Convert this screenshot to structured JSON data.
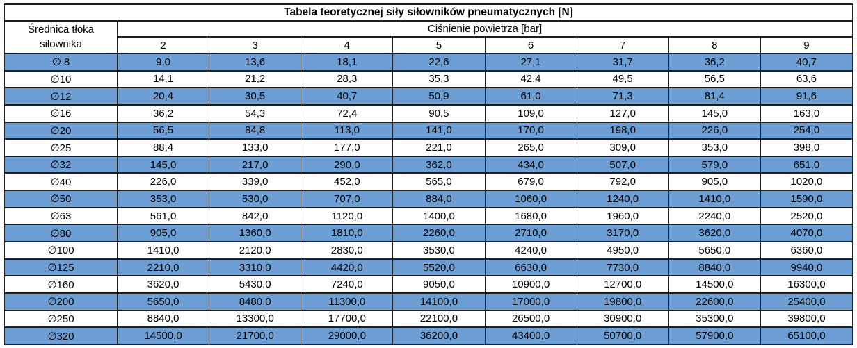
{
  "table": {
    "title": "Tabela teoretycznej siły siłowników pneumatycznych [N]",
    "row_header_line1": "Średnica tłoka",
    "row_header_line2": "siłownika",
    "pressure_header": "Ciśnienie powietrza [bar]",
    "pressure_columns": [
      "2",
      "3",
      "4",
      "5",
      "6",
      "7",
      "8",
      "9"
    ],
    "rows": [
      {
        "diameter": "∅ 8",
        "values": [
          "9,0",
          "13,6",
          "18,1",
          "22,6",
          "27,1",
          "31,7",
          "36,2",
          "40,7"
        ]
      },
      {
        "diameter": "∅10",
        "values": [
          "14,1",
          "21,2",
          "28,3",
          "35,3",
          "42,4",
          "49,5",
          "56,5",
          "63,6"
        ]
      },
      {
        "diameter": "∅12",
        "values": [
          "20,4",
          "30,5",
          "40,7",
          "50,9",
          "61,0",
          "71,3",
          "81,4",
          "91,6"
        ]
      },
      {
        "diameter": "∅16",
        "values": [
          "36,2",
          "54,3",
          "72,4",
          "90,5",
          "109,0",
          "127,0",
          "145,0",
          "163,0"
        ]
      },
      {
        "diameter": "∅20",
        "values": [
          "56,5",
          "84,8",
          "113,0",
          "141,0",
          "170,0",
          "198,0",
          "226,0",
          "254,0"
        ]
      },
      {
        "diameter": "∅25",
        "values": [
          "88,4",
          "133,0",
          "177,0",
          "221,0",
          "265,0",
          "309,0",
          "353,0",
          "398,0"
        ]
      },
      {
        "diameter": "∅32",
        "values": [
          "145,0",
          "217,0",
          "290,0",
          "362,0",
          "434,0",
          "507,0",
          "579,0",
          "651,0"
        ]
      },
      {
        "diameter": "∅40",
        "values": [
          "226,0",
          "339,0",
          "452,0",
          "565,0",
          "679,0",
          "792,0",
          "905,0",
          "1020,0"
        ]
      },
      {
        "diameter": "∅50",
        "values": [
          "353,0",
          "530,0",
          "707,0",
          "884,0",
          "1060,0",
          "1240,0",
          "1410,0",
          "1590,0"
        ]
      },
      {
        "diameter": "∅63",
        "values": [
          "561,0",
          "842,0",
          "1120,0",
          "1400,0",
          "1680,0",
          "1960,0",
          "2240,0",
          "2520,0"
        ]
      },
      {
        "diameter": "∅80",
        "values": [
          "905,0",
          "1360,0",
          "1810,0",
          "2260,0",
          "2710,0",
          "3170,0",
          "3620,0",
          "4070,0"
        ]
      },
      {
        "diameter": "∅100",
        "values": [
          "1410,0",
          "2120,0",
          "2830,0",
          "3530,0",
          "4240,0",
          "4950,0",
          "5650,0",
          "6360,0"
        ]
      },
      {
        "diameter": "∅125",
        "values": [
          "2210,0",
          "3310,0",
          "4420,0",
          "5520,0",
          "6630,0",
          "7730,0",
          "8840,0",
          "9940,0"
        ]
      },
      {
        "diameter": "∅160",
        "values": [
          "3620,0",
          "5430,0",
          "7240,0",
          "9050,0",
          "10900,0",
          "12700,0",
          "14500,0",
          "16300,0"
        ]
      },
      {
        "diameter": "∅200",
        "values": [
          "5650,0",
          "8480,0",
          "11300,0",
          "14100,0",
          "17000,0",
          "19800,0",
          "22600,0",
          "25400,0"
        ]
      },
      {
        "diameter": "∅250",
        "values": [
          "8840,0",
          "13300,0",
          "17700,0",
          "22100,0",
          "26500,0",
          "30900,0",
          "35300,0",
          "39800,0"
        ]
      },
      {
        "diameter": "∅320",
        "values": [
          "14500,0",
          "21700,0",
          "29000,0",
          "36200,0",
          "43400,0",
          "50700,0",
          "57900,0",
          "65100,0"
        ]
      }
    ],
    "colors": {
      "row_highlight": "#6d9ed4",
      "row_plain": "#ffffff",
      "border": "#1f1f1f",
      "text": "#000000"
    }
  }
}
